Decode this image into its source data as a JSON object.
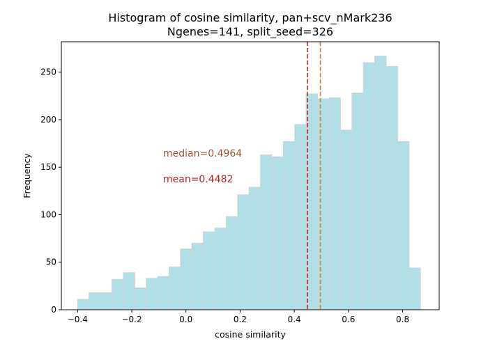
{
  "chart_data": {
    "type": "bar",
    "title": "Histogram of cosine similarity, pan+scv_nMark236",
    "subtitle": "Ngenes=141, split_seed=326",
    "xlabel": "cosine similarity",
    "ylabel": "Frequency",
    "xlim": [
      -0.46,
      0.935
    ],
    "ylim": [
      0,
      282
    ],
    "xticks": [
      -0.4,
      -0.2,
      0.0,
      0.2,
      0.4,
      0.6,
      0.8
    ],
    "xtick_labels": [
      "−0.4",
      "−0.2",
      "0.0",
      "0.2",
      "0.4",
      "0.6",
      "0.8"
    ],
    "yticks": [
      0,
      50,
      100,
      150,
      200,
      250
    ],
    "bin_start": -0.4,
    "bin_width": 0.0422,
    "values": [
      11,
      18,
      18,
      32,
      39,
      23,
      33,
      35,
      45,
      64,
      70,
      82,
      86,
      98,
      121,
      129,
      163,
      161,
      177,
      195,
      227,
      222,
      223,
      189,
      228,
      260,
      267,
      256,
      177,
      44
    ],
    "bar_color": "#b0dfe5",
    "bar_edge_color": "#d3d3d3",
    "median": 0.4964,
    "mean": 0.4482,
    "median_label": "median=0.4964",
    "mean_label": "mean=0.4482",
    "median_color": "#d2823a",
    "mean_color": "#b22222",
    "median_text_color": "#a0522d",
    "mean_text_color": "#b22222",
    "grid": false
  }
}
